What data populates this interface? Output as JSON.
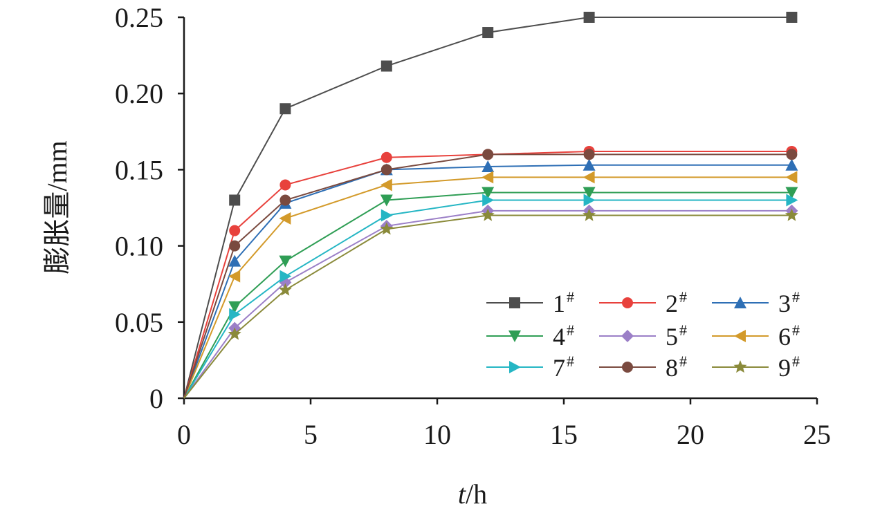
{
  "chart_data": {
    "type": "line",
    "title": "",
    "xlabel": "t",
    "xlabel_unit": "/h",
    "ylabel": "膨胀量/mm",
    "xlim": [
      0,
      25
    ],
    "ylim": [
      0,
      0.25
    ],
    "x_ticks": [
      "0",
      "5",
      "10",
      "15",
      "20",
      "25"
    ],
    "y_ticks": [
      "0",
      "0.05",
      "0.10",
      "0.15",
      "0.20",
      "0.25"
    ],
    "legend_position": "lower-right",
    "x": [
      0,
      2,
      4,
      8,
      12,
      16,
      24
    ],
    "series": [
      {
        "name": "1",
        "sup": "#",
        "color": "#4d4d4d",
        "marker": "square",
        "values": [
          0,
          0.13,
          0.19,
          0.218,
          0.24,
          0.25,
          0.25
        ]
      },
      {
        "name": "2",
        "sup": "#",
        "color": "#e8413c",
        "marker": "circle",
        "values": [
          0,
          0.11,
          0.14,
          0.158,
          0.16,
          0.162,
          0.162
        ]
      },
      {
        "name": "3",
        "sup": "#",
        "color": "#2e6fb5",
        "marker": "triangle-up",
        "values": [
          0,
          0.09,
          0.128,
          0.15,
          0.152,
          0.153,
          0.153
        ]
      },
      {
        "name": "4",
        "sup": "#",
        "color": "#2f9e55",
        "marker": "triangle-down",
        "values": [
          0,
          0.06,
          0.09,
          0.13,
          0.135,
          0.135,
          0.135
        ]
      },
      {
        "name": "5",
        "sup": "#",
        "color": "#9b7fc7",
        "marker": "diamond",
        "values": [
          0,
          0.046,
          0.076,
          0.113,
          0.123,
          0.123,
          0.123
        ]
      },
      {
        "name": "6",
        "sup": "#",
        "color": "#d39a2a",
        "marker": "triangle-left",
        "values": [
          0,
          0.08,
          0.118,
          0.14,
          0.145,
          0.145,
          0.145
        ]
      },
      {
        "name": "7",
        "sup": "#",
        "color": "#25b6c4",
        "marker": "triangle-right",
        "values": [
          0,
          0.055,
          0.08,
          0.12,
          0.13,
          0.13,
          0.13
        ]
      },
      {
        "name": "8",
        "sup": "#",
        "color": "#7a4a3f",
        "marker": "circle",
        "values": [
          0,
          0.1,
          0.13,
          0.15,
          0.16,
          0.16,
          0.16
        ]
      },
      {
        "name": "9",
        "sup": "#",
        "color": "#8a8a3a",
        "marker": "star",
        "values": [
          0,
          0.042,
          0.071,
          0.111,
          0.12,
          0.12,
          0.12
        ]
      }
    ]
  }
}
